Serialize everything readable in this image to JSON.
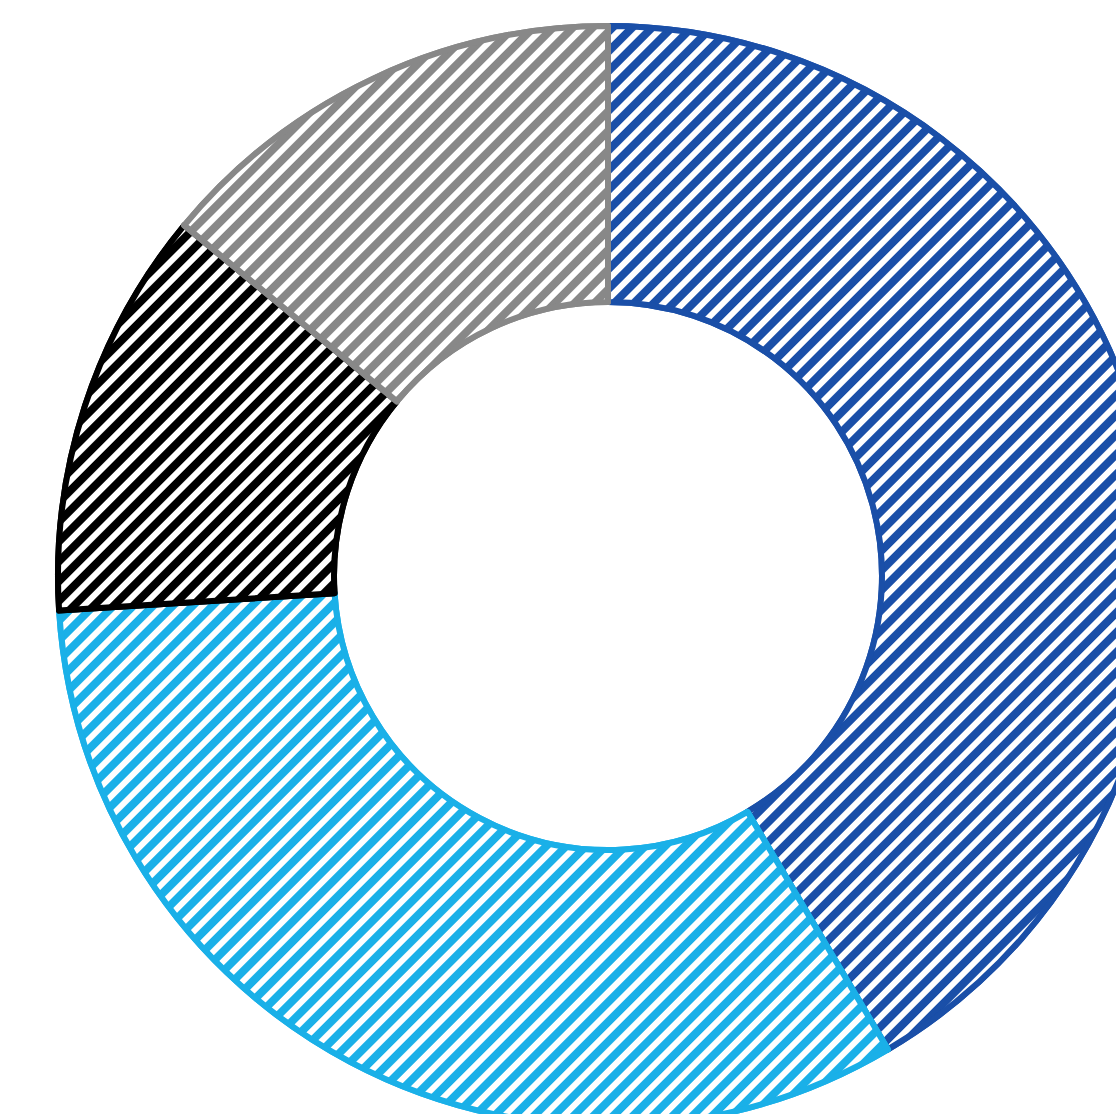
{
  "chart_data": {
    "type": "donut",
    "categories": [
      null,
      null,
      null,
      null
    ],
    "values": [
      41.5,
      32.5,
      12,
      14
    ],
    "colors": [
      "#1a4fa8",
      "#1ab0e8",
      "#000000",
      "#888888"
    ]
  }
}
